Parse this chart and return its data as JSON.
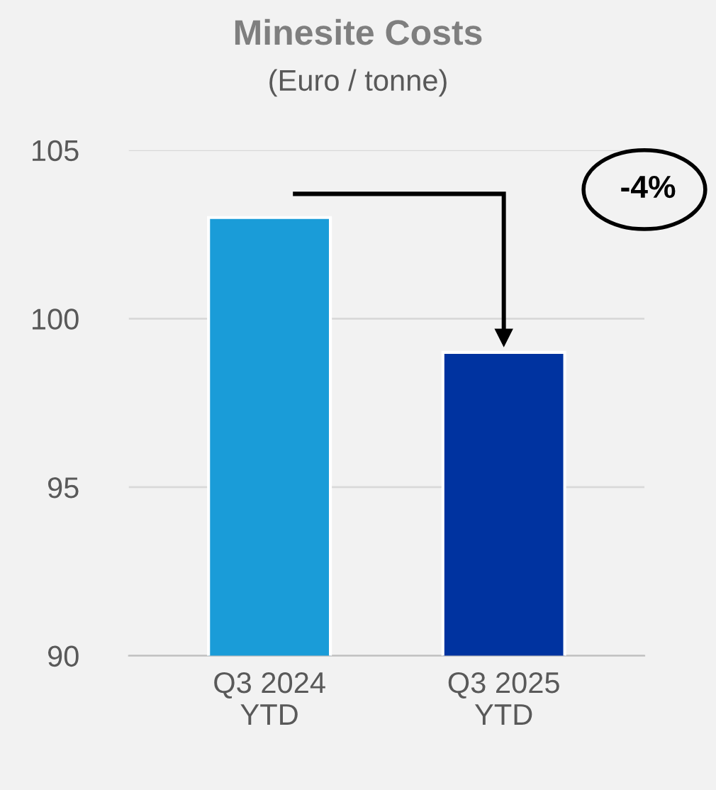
{
  "chart_data": {
    "type": "bar",
    "title": "Minesite Costs",
    "subtitle": "(Euro / tonne)",
    "categories": [
      "Q3 2024\nYTD",
      "Q3 2025\nYTD"
    ],
    "values": [
      103,
      99
    ],
    "colors": [
      "#1a9cd8",
      "#0033a0"
    ],
    "ylim": [
      90,
      105
    ],
    "yticks": [
      90,
      95,
      100,
      105
    ],
    "grid": "y",
    "annotations": [
      "-4%"
    ]
  }
}
